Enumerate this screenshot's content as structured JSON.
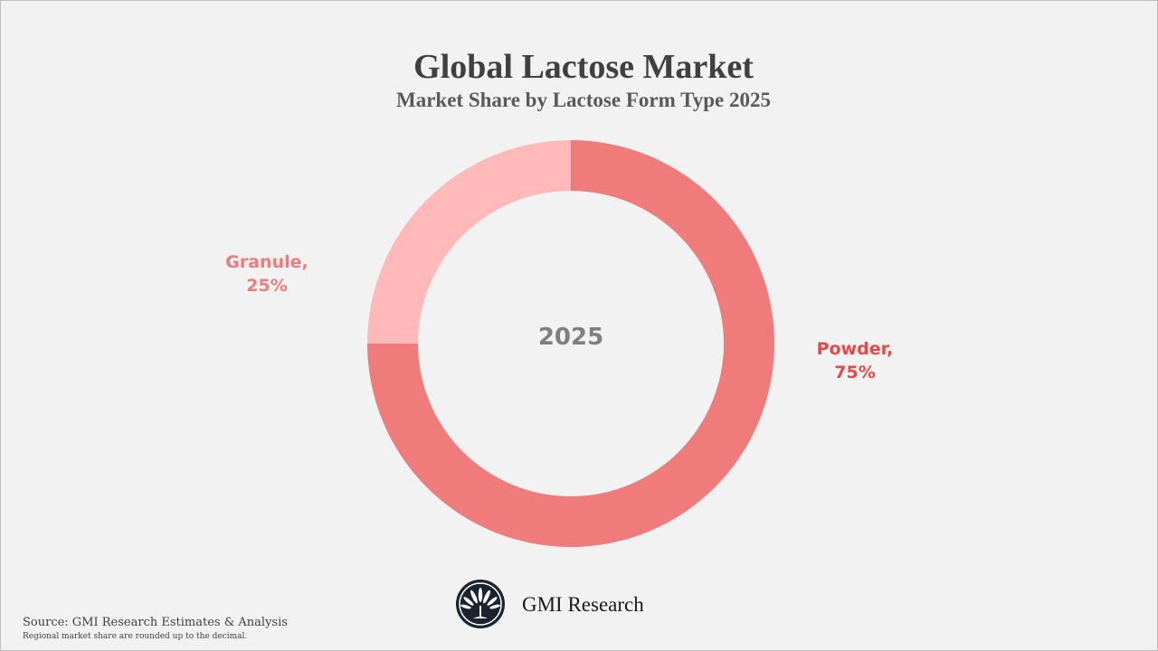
{
  "chart_data": {
    "type": "pie",
    "variant": "donut",
    "title": "Global Lactose Market",
    "subtitle": "Market Share by Lactose Form Type 2025",
    "center_label": "2025",
    "slices": [
      {
        "name": "Powder",
        "value": 75,
        "label_name": "Powder,",
        "label_value": "75%",
        "color": "#F07B7B",
        "label_color": "#E84848"
      },
      {
        "name": "Granule",
        "value": 25,
        "label_name": "Granule,",
        "label_value": "25%",
        "color": "#FFB9B9",
        "label_color": "#F07B7B"
      }
    ]
  },
  "footer": {
    "brand": "GMI Research",
    "source": "Source: GMI Research Estimates & Analysis",
    "note": "Regional market share are rounded up to the decimal."
  }
}
